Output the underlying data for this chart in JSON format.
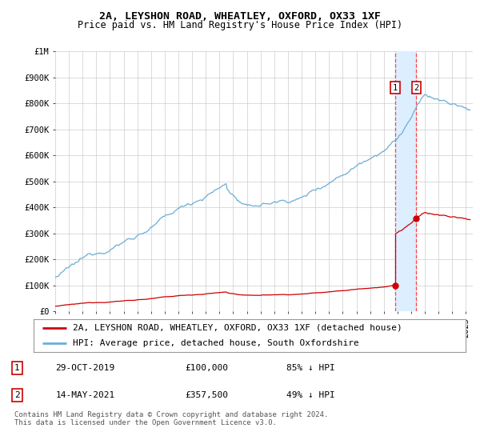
{
  "title": "2A, LEYSHON ROAD, WHEATLEY, OXFORD, OX33 1XF",
  "subtitle": "Price paid vs. HM Land Registry's House Price Index (HPI)",
  "ylabel_ticks": [
    "£0",
    "£100K",
    "£200K",
    "£300K",
    "£400K",
    "£500K",
    "£600K",
    "£700K",
    "£800K",
    "£900K",
    "£1M"
  ],
  "ytick_values": [
    0,
    100000,
    200000,
    300000,
    400000,
    500000,
    600000,
    700000,
    800000,
    900000,
    1000000
  ],
  "ylim": [
    0,
    1000000
  ],
  "year_start": 1995.0,
  "year_end": 2025.5,
  "hpi_color": "#6baed6",
  "price_color": "#cc0000",
  "background_color": "#ffffff",
  "grid_color": "#cccccc",
  "sale1_date": 2019.83,
  "sale1_price": 100000,
  "sale2_date": 2021.37,
  "sale2_price": 357500,
  "shade_color": "#ddeeff",
  "dashed_color": "#ff4444",
  "legend_label1": "2A, LEYSHON ROAD, WHEATLEY, OXFORD, OX33 1XF (detached house)",
  "legend_label2": "HPI: Average price, detached house, South Oxfordshire",
  "table_row1": [
    "1",
    "29-OCT-2019",
    "£100,000",
    "85% ↓ HPI"
  ],
  "table_row2": [
    "2",
    "14-MAY-2021",
    "£357,500",
    "49% ↓ HPI"
  ],
  "footnote": "Contains HM Land Registry data © Crown copyright and database right 2024.\nThis data is licensed under the Open Government Licence v3.0.",
  "title_fontsize": 9.5,
  "subtitle_fontsize": 8.5,
  "tick_fontsize": 7.5,
  "legend_fontsize": 8,
  "table_fontsize": 8,
  "footnote_fontsize": 6.5
}
